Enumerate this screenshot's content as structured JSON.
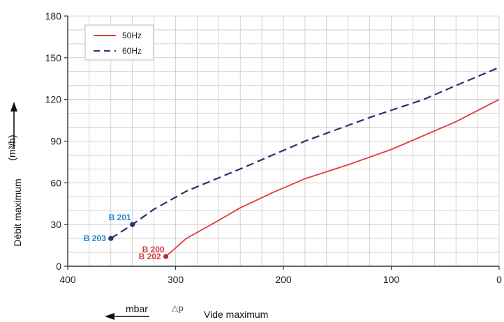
{
  "colors": {
    "series_50hz": "#e03c3c",
    "series_60hz": "#2e2e6e",
    "blue_label": "#2a86c8",
    "red_label": "#d63a3a",
    "grid": "#c8c8c8"
  },
  "chart_data": {
    "type": "line",
    "title": "",
    "xlabel": "Vide maximum",
    "xlabel_prefix": "mbar",
    "xlabel_symbol": "△p",
    "ylabel": "Débit maximum",
    "ylabel_unit": "(m³/h)",
    "xlim": [
      400,
      0
    ],
    "ylim": [
      0,
      180
    ],
    "x_reversed": true,
    "x_ticks": [
      400,
      300,
      200,
      100,
      0
    ],
    "y_ticks": [
      0,
      30,
      60,
      90,
      120,
      150,
      180
    ],
    "grid": true,
    "legend_position": "top-left",
    "series": [
      {
        "name": "50Hz",
        "style": "solid",
        "color": "#e03c3c",
        "points": [
          [
            309,
            7
          ],
          [
            290,
            20
          ],
          [
            260,
            33
          ],
          [
            240,
            42
          ],
          [
            210,
            53
          ],
          [
            180,
            63
          ],
          [
            140,
            73
          ],
          [
            100,
            84
          ],
          [
            40,
            104
          ],
          [
            0,
            120
          ]
        ]
      },
      {
        "name": "60Hz",
        "style": "dashed",
        "color": "#2e2e6e",
        "points": [
          [
            360,
            20
          ],
          [
            340,
            30
          ],
          [
            320,
            41
          ],
          [
            290,
            54
          ],
          [
            240,
            70
          ],
          [
            180,
            90
          ],
          [
            120,
            107
          ],
          [
            70,
            120
          ],
          [
            40,
            130
          ],
          [
            0,
            143
          ]
        ]
      }
    ],
    "annotations": [
      {
        "text": "B 201",
        "x": 340,
        "y": 30,
        "color": "#2a86c8",
        "marker": true,
        "marker_color": "#2e2e6e",
        "anchor": "upper-left"
      },
      {
        "text": "B 203",
        "x": 360,
        "y": 20,
        "color": "#2a86c8",
        "marker": true,
        "marker_color": "#2e2e6e",
        "anchor": "left"
      },
      {
        "text": "B 200",
        "x": 309,
        "y": 7,
        "color": "#d63a3a",
        "marker": false,
        "anchor": "upper-left"
      },
      {
        "text": "B 202",
        "x": 309,
        "y": 7,
        "color": "#d63a3a",
        "marker": true,
        "marker_color": "#b03030",
        "anchor": "left"
      }
    ]
  }
}
